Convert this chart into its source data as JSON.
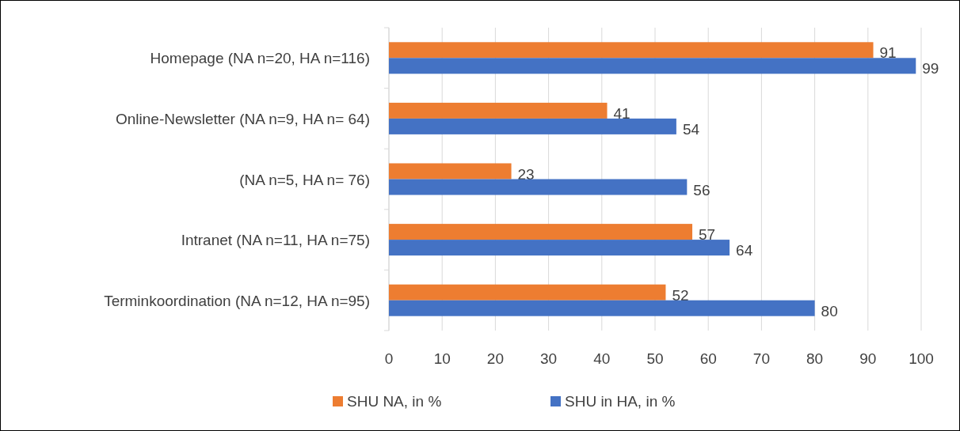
{
  "chart_data": {
    "type": "bar",
    "orientation": "horizontal",
    "categories": [
      "Homepage  (NA n=20, HA n=116)",
      "Online-Newsletter  (NA n=9, HA n= 64)",
      "(NA n=5, HA n= 76)",
      "Intranet (NA n=11, HA n=75)",
      "Terminkoordination (NA n=12,  HA n=95)"
    ],
    "series": [
      {
        "name": "SHU NA, in %",
        "color": "#ed7d31",
        "values": [
          91,
          41,
          23,
          57,
          52
        ]
      },
      {
        "name": "SHU in HA, in %",
        "color": "#4472c4",
        "values": [
          99,
          54,
          56,
          64,
          80
        ]
      }
    ],
    "xlim": [
      0,
      100
    ],
    "xticks": [
      0,
      10,
      20,
      30,
      40,
      50,
      60,
      70,
      80,
      90,
      100
    ],
    "grid": "x",
    "legend": "bottom",
    "data_labels": true
  }
}
